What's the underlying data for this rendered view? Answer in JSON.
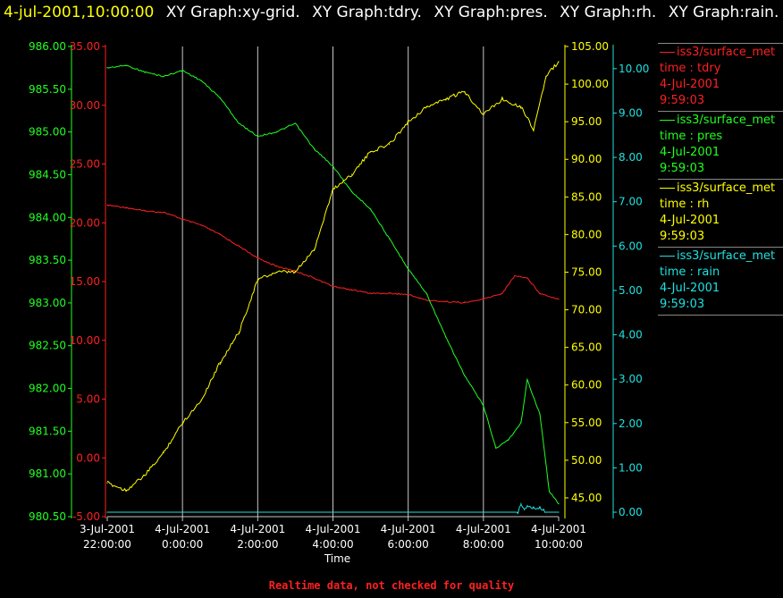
{
  "header": {
    "time": "4-jul-2001,10:00:00",
    "graphs": [
      "XY Graph:xy-grid.",
      "XY Graph:tdry.",
      "XY Graph:pres.",
      "XY Graph:rh.",
      "XY Graph:rain."
    ]
  },
  "legend": [
    {
      "source": "iss3/surface_met",
      "variable": "time : tdry",
      "date": "4-Jul-2001",
      "time": "9:59:03",
      "color": "#ff2020"
    },
    {
      "source": "iss3/surface_met",
      "variable": "time : pres",
      "date": "4-Jul-2001",
      "time": "9:59:03",
      "color": "#20ff20"
    },
    {
      "source": "iss3/surface_met",
      "variable": "time : rh",
      "date": "4-Jul-2001",
      "time": "9:59:03",
      "color": "#ffff00"
    },
    {
      "source": "iss3/surface_met",
      "variable": "time : rain",
      "date": "4-Jul-2001",
      "time": "9:59:03",
      "color": "#20e0e0"
    }
  ],
  "footer": {
    "note": "Realtime data, not checked for quality"
  },
  "chart_data": {
    "type": "line",
    "xlabel": "Time",
    "x_ticks": [
      {
        "t": 0,
        "line1": "3-Jul-2001",
        "line2": "22:00:00"
      },
      {
        "t": 2,
        "line1": "4-Jul-2001",
        "line2": "0:00:00"
      },
      {
        "t": 4,
        "line1": "4-Jul-2001",
        "line2": "2:00:00"
      },
      {
        "t": 6,
        "line1": "4-Jul-2001",
        "line2": "4:00:00"
      },
      {
        "t": 8,
        "line1": "4-Jul-2001",
        "line2": "6:00:00"
      },
      {
        "t": 10,
        "line1": "4-Jul-2001",
        "line2": "8:00:00"
      },
      {
        "t": 12,
        "line1": "4-Jul-2001",
        "line2": "10:00:00"
      }
    ],
    "xlim": [
      "3-Jul-2001 22:00:00",
      "4-Jul-2001 10:00:00"
    ],
    "grid": "vertical",
    "axes": [
      {
        "id": "pres",
        "color": "#20ff20",
        "ylim": [
          980.5,
          986.0
        ],
        "ticks": [
          "980.50",
          "981.00",
          "981.50",
          "982.00",
          "982.50",
          "983.00",
          "983.50",
          "984.00",
          "984.50",
          "985.00",
          "985.50",
          "986.00"
        ]
      },
      {
        "id": "tdry",
        "color": "#ff2020",
        "ylim": [
          -5,
          35
        ],
        "ticks": [
          "-5.00",
          "0.00",
          "5.00",
          "10.00",
          "15.00",
          "20.00",
          "25.00",
          "30.00",
          "35.00"
        ]
      },
      {
        "id": "rh",
        "color": "#ffff00",
        "ylim": [
          42.5,
          105
        ],
        "ticks": [
          "45.00",
          "50.00",
          "55.00",
          "60.00",
          "65.00",
          "70.00",
          "75.00",
          "80.00",
          "85.00",
          "90.00",
          "95.00",
          "100.00",
          "105.00"
        ]
      },
      {
        "id": "rain",
        "color": "#20e0e0",
        "ylim": [
          -0.1,
          10.5
        ],
        "ticks": [
          "0.00",
          "1.00",
          "2.00",
          "3.00",
          "4.00",
          "5.00",
          "6.00",
          "7.00",
          "8.00",
          "9.00",
          "10.00"
        ]
      }
    ],
    "series": [
      {
        "name": "tdry",
        "axis": "tdry",
        "color": "#ff2020",
        "x": [
          "3-Jul-2001 22:00",
          "3-Jul-2001 22:30",
          "3-Jul-2001 23:00",
          "3-Jul-2001 23:30",
          "4-Jul-2001 0:00",
          "4-Jul-2001 0:30",
          "4-Jul-2001 1:00",
          "4-Jul-2001 1:30",
          "4-Jul-2001 2:00",
          "4-Jul-2001 2:30",
          "4-Jul-2001 3:00",
          "4-Jul-2001 3:30",
          "4-Jul-2001 4:00",
          "4-Jul-2001 4:30",
          "4-Jul-2001 5:00",
          "4-Jul-2001 5:30",
          "4-Jul-2001 6:00",
          "4-Jul-2001 6:30",
          "4-Jul-2001 7:00",
          "4-Jul-2001 7:30",
          "4-Jul-2001 8:00",
          "4-Jul-2001 8:30",
          "4-Jul-2001 8:50",
          "4-Jul-2001 9:10",
          "4-Jul-2001 9:30",
          "4-Jul-2001 10:00"
        ],
        "values": [
          21.5,
          21.3,
          21.0,
          20.9,
          20.3,
          19.8,
          19.0,
          18.0,
          17.0,
          16.3,
          15.9,
          15.3,
          14.6,
          14.3,
          14.0,
          14.0,
          13.9,
          13.4,
          13.3,
          13.2,
          13.5,
          14.0,
          15.5,
          15.3,
          14.0,
          13.5
        ]
      },
      {
        "name": "pres",
        "axis": "pres",
        "color": "#20ff20",
        "x": [
          "3-Jul-2001 22:00",
          "3-Jul-2001 22:30",
          "3-Jul-2001 23:00",
          "3-Jul-2001 23:30",
          "4-Jul-2001 0:00",
          "4-Jul-2001 0:30",
          "4-Jul-2001 1:00",
          "4-Jul-2001 1:30",
          "4-Jul-2001 2:00",
          "4-Jul-2001 2:30",
          "4-Jul-2001 3:00",
          "4-Jul-2001 3:30",
          "4-Jul-2001 4:00",
          "4-Jul-2001 4:30",
          "4-Jul-2001 5:00",
          "4-Jul-2001 5:30",
          "4-Jul-2001 6:00",
          "4-Jul-2001 6:30",
          "4-Jul-2001 7:00",
          "4-Jul-2001 7:30",
          "4-Jul-2001 8:00",
          "4-Jul-2001 8:20",
          "4-Jul-2001 8:40",
          "4-Jul-2001 9:00",
          "4-Jul-2001 9:10",
          "4-Jul-2001 9:30",
          "4-Jul-2001 9:45",
          "4-Jul-2001 10:00"
        ],
        "values": [
          985.75,
          985.78,
          985.7,
          985.65,
          985.72,
          985.6,
          985.4,
          985.1,
          984.95,
          985.0,
          985.1,
          984.8,
          984.6,
          984.3,
          984.1,
          983.75,
          983.4,
          983.1,
          982.6,
          982.15,
          981.8,
          981.3,
          981.4,
          981.6,
          982.1,
          981.7,
          980.8,
          980.65
        ]
      },
      {
        "name": "rh",
        "axis": "rh",
        "color": "#ffff00",
        "x": [
          "3-Jul-2001 22:00",
          "3-Jul-2001 22:30",
          "3-Jul-2001 23:00",
          "3-Jul-2001 23:30",
          "4-Jul-2001 0:00",
          "4-Jul-2001 0:30",
          "4-Jul-2001 1:00",
          "4-Jul-2001 1:30",
          "4-Jul-2001 2:00",
          "4-Jul-2001 2:30",
          "4-Jul-2001 3:00",
          "4-Jul-2001 3:30",
          "4-Jul-2001 4:00",
          "4-Jul-2001 4:30",
          "4-Jul-2001 5:00",
          "4-Jul-2001 5:30",
          "4-Jul-2001 6:00",
          "4-Jul-2001 6:30",
          "4-Jul-2001 7:00",
          "4-Jul-2001 7:30",
          "4-Jul-2001 8:00",
          "4-Jul-2001 8:30",
          "4-Jul-2001 9:00",
          "4-Jul-2001 9:20",
          "4-Jul-2001 9:40",
          "4-Jul-2001 10:00"
        ],
        "values": [
          47,
          46,
          48,
          51,
          55,
          58,
          63,
          67,
          74,
          75,
          75,
          78,
          86,
          88,
          91,
          92,
          95,
          97,
          98,
          99,
          96,
          98,
          97,
          94,
          101,
          103
        ]
      },
      {
        "name": "rain",
        "axis": "rain",
        "color": "#20e0e0",
        "x": [
          "3-Jul-2001 22:00",
          "4-Jul-2001 0:00",
          "4-Jul-2001 2:00",
          "4-Jul-2001 4:00",
          "4-Jul-2001 6:00",
          "4-Jul-2001 8:00",
          "4-Jul-2001 8:55",
          "4-Jul-2001 9:00",
          "4-Jul-2001 9:05",
          "4-Jul-2001 9:10",
          "4-Jul-2001 9:20",
          "4-Jul-2001 9:30",
          "4-Jul-2001 9:40",
          "4-Jul-2001 10:00"
        ],
        "values": [
          0,
          0,
          0,
          0,
          0,
          0,
          0,
          0.2,
          0.05,
          0.15,
          0.1,
          0.1,
          0,
          0
        ]
      }
    ]
  }
}
